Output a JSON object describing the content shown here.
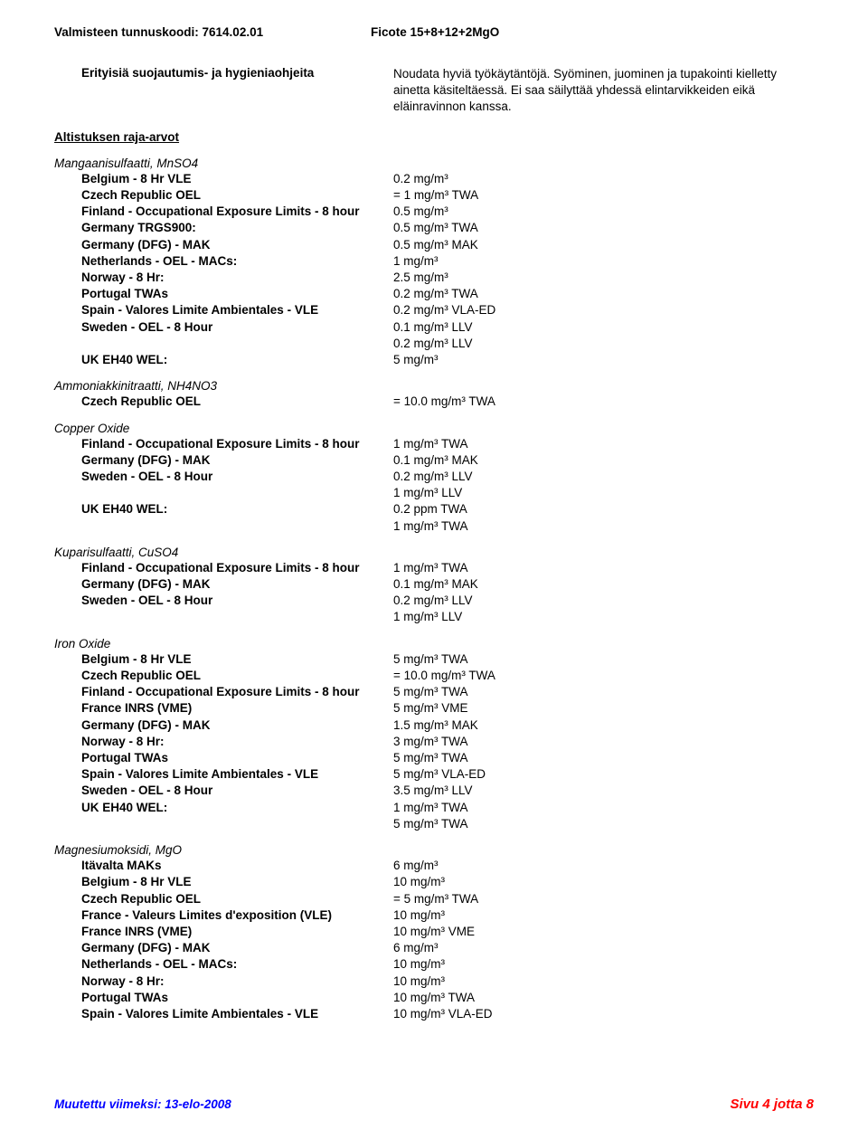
{
  "header": {
    "left": "Valmisteen tunnuskoodi: 7614.02.01",
    "right": "Ficote 15+8+12+2MgO"
  },
  "intro": {
    "label": "Erityisiä suojautumis- ja hygieniaohjeita",
    "text": "Noudata hyviä työkäytäntöjä. Syöminen, juominen ja tupakointi kielletty ainetta käsiteltäessä. Ei saa säilyttää yhdessä elintarvikkeiden eikä eläinravinnon kanssa."
  },
  "exposure_heading": "Altistuksen raja-arvot",
  "substances": [
    {
      "name": "Mangaanisulfaatti, MnSO4",
      "rows": [
        {
          "label": "Belgium - 8 Hr VLE",
          "value": "0.2 mg/m³"
        },
        {
          "label": "Czech Republic OEL",
          "value": "= 1 mg/m³ TWA"
        },
        {
          "label": "Finland - Occupational Exposure Limits - 8 hour",
          "value": "0.5 mg/m³"
        },
        {
          "label": "Germany TRGS900:",
          "value": "0.5 mg/m³ TWA"
        },
        {
          "label": "Germany (DFG) - MAK",
          "value": "0.5 mg/m³ MAK"
        },
        {
          "label": "Netherlands - OEL - MACs:",
          "value": "1 mg/m³"
        },
        {
          "label": "Norway - 8 Hr:",
          "value": "2.5 mg/m³"
        },
        {
          "label": "Portugal TWAs",
          "value": "0.2 mg/m³ TWA"
        },
        {
          "label": "Spain - Valores Limite Ambientales - VLE",
          "value": "0.2 mg/m³ VLA-ED"
        },
        {
          "label": "Sweden - OEL - 8 Hour",
          "value": "0.1 mg/m³ LLV"
        },
        {
          "label": "",
          "value": "0.2 mg/m³ LLV"
        },
        {
          "label": "UK EH40 WEL:",
          "value": "5 mg/m³"
        }
      ]
    },
    {
      "name": "Ammoniakkinitraatti,  NH4NO3",
      "rows": [
        {
          "label": "Czech Republic OEL",
          "value": "= 10.0 mg/m³ TWA"
        }
      ]
    },
    {
      "name": "Copper Oxide",
      "rows": [
        {
          "label": "Finland - Occupational Exposure Limits - 8 hour",
          "value": "1 mg/m³ TWA"
        },
        {
          "label": "Germany (DFG) - MAK",
          "value": "0.1 mg/m³ MAK"
        },
        {
          "label": "Sweden - OEL - 8 Hour",
          "value": "0.2 mg/m³ LLV"
        },
        {
          "label": "",
          "value": "1 mg/m³ LLV"
        },
        {
          "label": "UK EH40 WEL:",
          "value": "0.2 ppm TWA"
        },
        {
          "label": "",
          "value": "1 mg/m³ TWA"
        }
      ]
    },
    {
      "name": "Kuparisulfaatti, CuSO4",
      "rows": [
        {
          "label": "Finland - Occupational Exposure Limits - 8 hour",
          "value": "1 mg/m³ TWA"
        },
        {
          "label": "Germany (DFG) - MAK",
          "value": "0.1 mg/m³ MAK"
        },
        {
          "label": "Sweden - OEL - 8 Hour",
          "value": "0.2 mg/m³ LLV"
        },
        {
          "label": "",
          "value": "1 mg/m³ LLV"
        }
      ]
    },
    {
      "name": "Iron Oxide",
      "rows": [
        {
          "label": "Belgium - 8 Hr VLE",
          "value": "5 mg/m³ TWA"
        },
        {
          "label": "Czech Republic OEL",
          "value": "= 10.0 mg/m³ TWA"
        },
        {
          "label": "Finland - Occupational Exposure Limits - 8 hour",
          "value": "5 mg/m³ TWA"
        },
        {
          "label": "France INRS (VME)",
          "value": "5 mg/m³ VME"
        },
        {
          "label": "Germany (DFG) - MAK",
          "value": "1.5 mg/m³ MAK"
        },
        {
          "label": "Norway - 8 Hr:",
          "value": "3 mg/m³ TWA"
        },
        {
          "label": "Portugal TWAs",
          "value": "5 mg/m³ TWA"
        },
        {
          "label": "Spain - Valores Limite Ambientales - VLE",
          "value": "5 mg/m³ VLA-ED"
        },
        {
          "label": "Sweden - OEL - 8 Hour",
          "value": "3.5 mg/m³ LLV"
        },
        {
          "label": "UK EH40 WEL:",
          "value": "1 mg/m³ TWA"
        },
        {
          "label": "",
          "value": "5 mg/m³ TWA"
        }
      ]
    },
    {
      "name": "Magnesiumoksidi, MgO",
      "rows": [
        {
          "label": "Itävalta MAKs",
          "value": "6 mg/m³"
        },
        {
          "label": "Belgium - 8 Hr VLE",
          "value": "10 mg/m³"
        },
        {
          "label": "Czech Republic OEL",
          "value": "= 5 mg/m³ TWA"
        },
        {
          "label": "France - Valeurs Limites d'exposition (VLE)",
          "value": "10 mg/m³"
        },
        {
          "label": "France INRS (VME)",
          "value": "10 mg/m³ VME"
        },
        {
          "label": "Germany (DFG) - MAK",
          "value": "6 mg/m³"
        },
        {
          "label": "Netherlands - OEL - MACs:",
          "value": "10 mg/m³"
        },
        {
          "label": "Norway - 8 Hr:",
          "value": "10 mg/m³"
        },
        {
          "label": "Portugal TWAs",
          "value": "10 mg/m³ TWA"
        },
        {
          "label": "Spain - Valores Limite Ambientales - VLE",
          "value": "10 mg/m³ VLA-ED"
        }
      ]
    }
  ],
  "footer": {
    "left": "Muutettu viimeksi: 13-elo-2008",
    "right": "Sivu 4 jotta 8"
  },
  "colors": {
    "footer_left": "#0000ff",
    "footer_right": "#ff0000",
    "text": "#000000",
    "background": "#ffffff"
  }
}
